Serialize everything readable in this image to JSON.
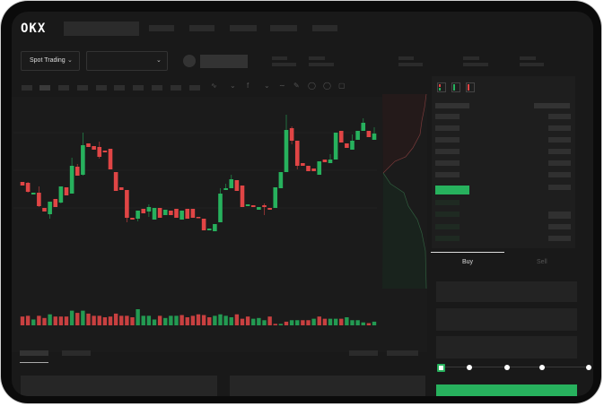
{
  "header": {
    "logo": "OKX"
  },
  "market": {
    "mode_label": "Spot Trading"
  },
  "trade": {
    "buy_tab": "Buy",
    "sell_tab": "Sell",
    "active_tab": "Buy",
    "leverage_steps": 5,
    "selected_step": 0
  },
  "colors": {
    "up": "#27b15d",
    "down": "#e04545",
    "background": "#191919",
    "accent": "#27b15d"
  },
  "icons": {
    "dropdown": "chevron-down-icon",
    "orderbook_modes": [
      "orderbook-both-icon",
      "orderbook-bids-icon",
      "orderbook-asks-icon"
    ]
  },
  "chart_data": {
    "type": "candlestick",
    "ylim": [
      40,
      175
    ],
    "candles": [
      [
        97,
        97,
        93,
        93
      ],
      [
        96,
        97,
        85,
        86
      ],
      [
        83,
        85,
        83,
        85
      ],
      [
        85,
        92,
        69,
        70
      ],
      [
        68,
        68,
        64,
        64
      ],
      [
        61,
        75,
        56,
        75
      ],
      [
        78,
        78,
        69,
        69
      ],
      [
        74,
        92,
        73,
        92
      ],
      [
        91,
        91,
        82,
        82
      ],
      [
        84,
        124,
        84,
        115
      ],
      [
        114,
        117,
        104,
        104
      ],
      [
        105,
        152,
        104,
        138
      ],
      [
        140,
        140,
        136,
        136
      ],
      [
        137,
        137,
        133,
        133
      ],
      [
        136,
        142,
        123,
        125
      ],
      [
        132,
        132,
        130,
        130
      ],
      [
        134,
        134,
        111,
        111
      ],
      [
        108,
        108,
        87,
        87
      ],
      [
        91,
        91,
        88,
        88
      ],
      [
        88,
        88,
        52,
        57
      ],
      [
        57,
        57,
        55,
        55
      ],
      [
        56,
        65,
        53,
        65
      ],
      [
        67,
        67,
        62,
        62
      ],
      [
        64,
        72,
        58,
        69
      ],
      [
        55,
        68,
        55,
        68
      ],
      [
        68,
        68,
        57,
        57
      ],
      [
        60,
        66,
        60,
        66
      ],
      [
        65,
        65,
        60,
        60
      ],
      [
        67,
        67,
        57,
        57
      ],
      [
        55,
        65,
        55,
        65
      ],
      [
        67,
        67,
        56,
        56
      ],
      [
        67,
        67,
        57,
        57
      ],
      [
        58,
        58,
        57,
        57
      ],
      [
        56,
        56,
        43,
        43
      ],
      [
        43,
        45,
        43,
        45
      ],
      [
        42,
        50,
        42,
        50
      ],
      [
        52,
        90,
        52,
        84
      ],
      [
        88,
        95,
        88,
        90
      ],
      [
        90,
        105,
        90,
        100
      ],
      [
        99,
        99,
        87,
        87
      ],
      [
        93,
        93,
        69,
        69
      ],
      [
        70,
        72,
        70,
        72
      ],
      [
        71,
        71,
        69,
        69
      ],
      [
        66,
        69,
        66,
        69
      ],
      [
        71,
        73,
        60,
        69
      ],
      [
        68,
        68,
        66,
        66
      ],
      [
        68,
        91,
        68,
        91
      ],
      [
        90,
        108,
        90,
        108
      ],
      [
        108,
        172,
        108,
        155
      ],
      [
        157,
        159,
        139,
        143
      ],
      [
        143,
        143,
        111,
        115
      ],
      [
        118,
        118,
        115,
        115
      ],
      [
        115,
        115,
        109,
        109
      ],
      [
        112,
        112,
        109,
        109
      ],
      [
        105,
        120,
        105,
        120
      ],
      [
        122,
        122,
        119,
        119
      ],
      [
        118,
        128,
        118,
        122
      ],
      [
        122,
        152,
        122,
        152
      ],
      [
        154,
        154,
        141,
        141
      ],
      [
        140,
        140,
        135,
        135
      ],
      [
        133,
        150,
        133,
        143
      ],
      [
        144,
        154,
        144,
        154
      ],
      [
        154,
        168,
        154,
        163
      ],
      [
        154,
        154,
        147,
        147
      ],
      [
        144,
        158,
        144,
        151
      ]
    ],
    "volume": [
      12,
      13,
      8,
      13,
      10,
      15,
      12,
      12,
      12,
      20,
      17,
      20,
      16,
      13,
      13,
      11,
      12,
      16,
      13,
      13,
      11,
      22,
      13,
      13,
      8,
      13,
      10,
      13,
      13,
      14,
      11,
      13,
      15,
      14,
      11,
      13,
      15,
      13,
      11,
      15,
      9,
      12,
      9,
      10,
      7,
      12,
      2,
      2,
      5,
      7,
      7,
      7,
      7,
      9,
      12,
      9,
      9,
      9,
      9,
      11,
      7,
      7,
      4,
      3,
      5
    ],
    "volume_direction": [
      "d",
      "d",
      "u",
      "d",
      "d",
      "u",
      "d",
      "d",
      "d",
      "u",
      "d",
      "u",
      "d",
      "d",
      "d",
      "d",
      "d",
      "d",
      "d",
      "d",
      "d",
      "u",
      "u",
      "u",
      "u",
      "d",
      "u",
      "u",
      "u",
      "d",
      "d",
      "d",
      "d",
      "d",
      "d",
      "u",
      "u",
      "u",
      "u",
      "d",
      "d",
      "d",
      "u",
      "u",
      "u",
      "d",
      "d",
      "u",
      "d",
      "u",
      "u",
      "d",
      "d",
      "u",
      "d",
      "d",
      "u",
      "u",
      "d",
      "u",
      "u",
      "u",
      "u",
      "d",
      "u"
    ]
  }
}
